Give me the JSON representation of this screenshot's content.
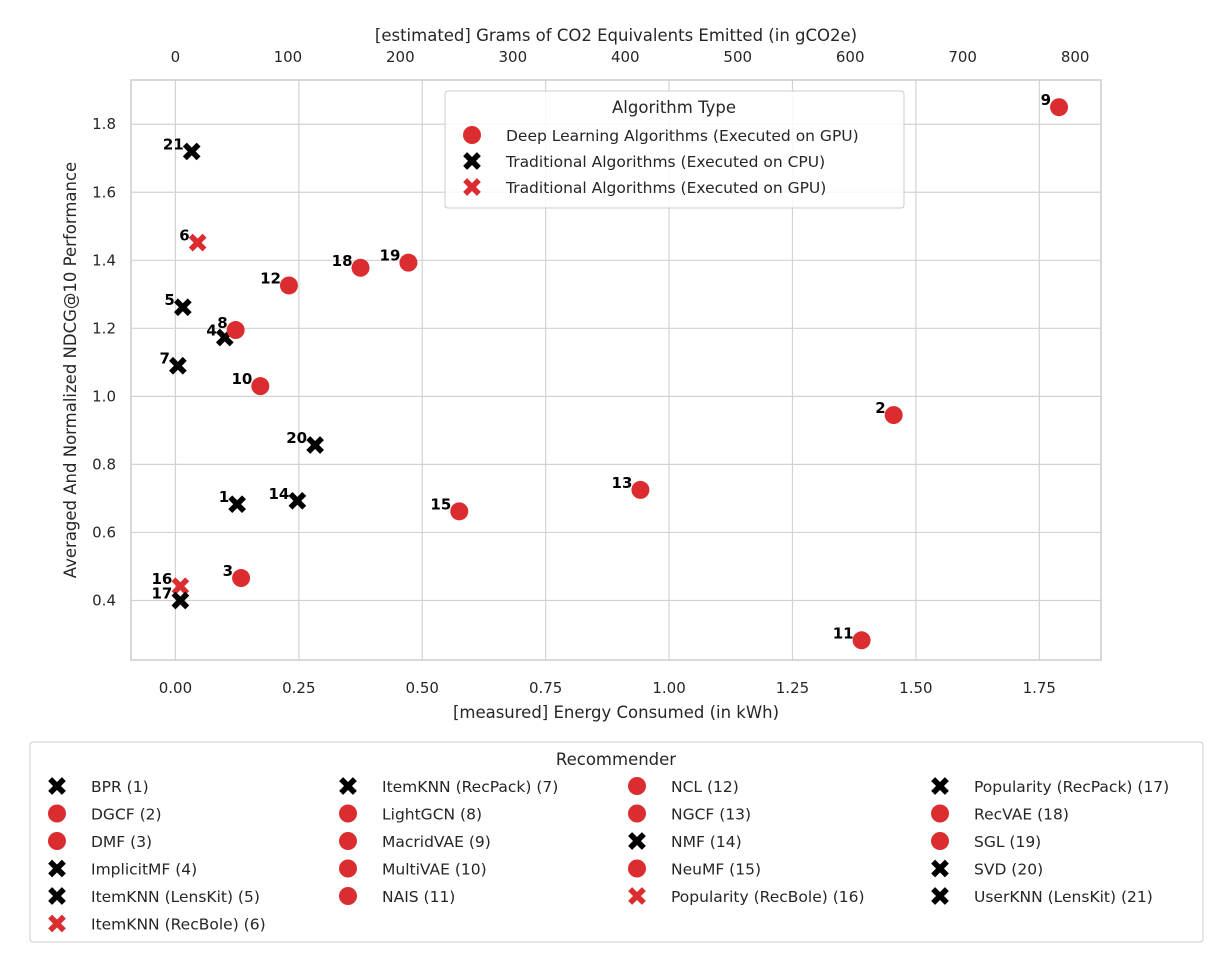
{
  "colors": {
    "deep_learning_gpu": "#db2d2f",
    "traditional_cpu": "#000000",
    "traditional_gpu": "#db2d2f",
    "grid": "#d2d2d2",
    "frame": "#cccccc"
  },
  "chart_data": {
    "type": "scatter",
    "xlabel": "[measured] Energy Consumed (in kWh)",
    "x2label": "[estimated] Grams of CO2 Equivalents Emitted (in gCO2e)",
    "ylabel": "Averaged And Normalized NDCG@10 Performance",
    "xlim": [
      -0.09,
      1.875
    ],
    "ylim": [
      0.225,
      1.93
    ],
    "x2lim": [
      -39.5,
      823
    ],
    "x_ticks": [
      "0.00",
      "0.25",
      "0.50",
      "0.75",
      "1.00",
      "1.25",
      "1.50",
      "1.75"
    ],
    "x_tick_values": [
      0,
      0.25,
      0.5,
      0.75,
      1.0,
      1.25,
      1.5,
      1.75
    ],
    "x2_ticks": [
      "0",
      "100",
      "200",
      "300",
      "400",
      "500",
      "600",
      "700",
      "800"
    ],
    "x2_tick_values": [
      0,
      100,
      200,
      300,
      400,
      500,
      600,
      700,
      800
    ],
    "y_ticks": [
      "0.4",
      "0.6",
      "0.8",
      "1.0",
      "1.2",
      "1.4",
      "1.6",
      "1.8"
    ],
    "y_tick_values": [
      0.4,
      0.6,
      0.8,
      1.0,
      1.2,
      1.4,
      1.6,
      1.8
    ],
    "grid": true,
    "legend": {
      "title": "Algorithm Type",
      "placement": "top-right",
      "entries": [
        {
          "label": "Deep Learning Algorithms (Executed on GPU)",
          "group": "deep_learning_gpu"
        },
        {
          "label": "Traditional Algorithms (Executed on CPU)",
          "group": "traditional_cpu"
        },
        {
          "label": "Traditional Algorithms (Executed on GPU)",
          "group": "traditional_gpu"
        }
      ]
    },
    "points": [
      {
        "id": "1",
        "x": 0.125,
        "y": 0.683,
        "group": "traditional_cpu"
      },
      {
        "id": "2",
        "x": 1.455,
        "y": 0.945,
        "group": "deep_learning_gpu"
      },
      {
        "id": "3",
        "x": 0.133,
        "y": 0.466,
        "group": "deep_learning_gpu"
      },
      {
        "id": "4",
        "x": 0.1,
        "y": 1.173,
        "group": "traditional_cpu"
      },
      {
        "id": "5",
        "x": 0.015,
        "y": 1.262,
        "group": "traditional_cpu"
      },
      {
        "id": "6",
        "x": 0.045,
        "y": 1.452,
        "group": "traditional_gpu"
      },
      {
        "id": "7",
        "x": 0.005,
        "y": 1.09,
        "group": "traditional_cpu"
      },
      {
        "id": "8",
        "x": 0.122,
        "y": 1.195,
        "group": "deep_learning_gpu"
      },
      {
        "id": "9",
        "x": 1.79,
        "y": 1.85,
        "group": "deep_learning_gpu"
      },
      {
        "id": "10",
        "x": 0.172,
        "y": 1.03,
        "group": "deep_learning_gpu"
      },
      {
        "id": "11",
        "x": 1.39,
        "y": 0.283,
        "group": "deep_learning_gpu"
      },
      {
        "id": "12",
        "x": 0.23,
        "y": 1.326,
        "group": "deep_learning_gpu"
      },
      {
        "id": "13",
        "x": 0.942,
        "y": 0.725,
        "group": "deep_learning_gpu"
      },
      {
        "id": "14",
        "x": 0.247,
        "y": 0.693,
        "group": "traditional_cpu"
      },
      {
        "id": "15",
        "x": 0.575,
        "y": 0.662,
        "group": "deep_learning_gpu"
      },
      {
        "id": "16",
        "x": 0.01,
        "y": 0.442,
        "group": "traditional_gpu"
      },
      {
        "id": "17",
        "x": 0.01,
        "y": 0.4,
        "group": "traditional_cpu"
      },
      {
        "id": "18",
        "x": 0.375,
        "y": 1.378,
        "group": "deep_learning_gpu"
      },
      {
        "id": "19",
        "x": 0.472,
        "y": 1.393,
        "group": "deep_learning_gpu"
      },
      {
        "id": "20",
        "x": 0.283,
        "y": 0.857,
        "group": "traditional_cpu"
      },
      {
        "id": "21",
        "x": 0.033,
        "y": 1.72,
        "group": "traditional_cpu"
      }
    ]
  },
  "recommender_legend": {
    "title": "Recommender",
    "columns": [
      [
        {
          "label": "BPR (1)",
          "group": "traditional_cpu"
        },
        {
          "label": "DGCF (2)",
          "group": "deep_learning_gpu"
        },
        {
          "label": "DMF (3)",
          "group": "deep_learning_gpu"
        },
        {
          "label": "ImplicitMF (4)",
          "group": "traditional_cpu"
        },
        {
          "label": "ItemKNN (LensKit) (5)",
          "group": "traditional_cpu"
        },
        {
          "label": "ItemKNN (RecBole) (6)",
          "group": "traditional_gpu"
        }
      ],
      [
        {
          "label": "ItemKNN (RecPack) (7)",
          "group": "traditional_cpu"
        },
        {
          "label": "LightGCN (8)",
          "group": "deep_learning_gpu"
        },
        {
          "label": "MacridVAE (9)",
          "group": "deep_learning_gpu"
        },
        {
          "label": "MultiVAE (10)",
          "group": "deep_learning_gpu"
        },
        {
          "label": "NAIS (11)",
          "group": "deep_learning_gpu"
        }
      ],
      [
        {
          "label": "NCL (12)",
          "group": "deep_learning_gpu"
        },
        {
          "label": "NGCF (13)",
          "group": "deep_learning_gpu"
        },
        {
          "label": "NMF (14)",
          "group": "traditional_cpu"
        },
        {
          "label": "NeuMF (15)",
          "group": "deep_learning_gpu"
        },
        {
          "label": "Popularity (RecBole) (16)",
          "group": "traditional_gpu"
        }
      ],
      [
        {
          "label": "Popularity (RecPack) (17)",
          "group": "traditional_cpu"
        },
        {
          "label": "RecVAE (18)",
          "group": "deep_learning_gpu"
        },
        {
          "label": "SGL (19)",
          "group": "deep_learning_gpu"
        },
        {
          "label": "SVD (20)",
          "group": "traditional_cpu"
        },
        {
          "label": "UserKNN (LensKit) (21)",
          "group": "traditional_cpu"
        }
      ]
    ]
  }
}
